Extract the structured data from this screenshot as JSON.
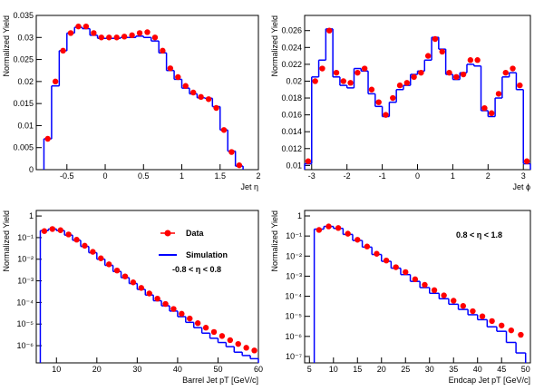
{
  "chart_data": [
    {
      "type": "histogram",
      "xlabel": "Jet η",
      "ylabel": "Normalized Yield",
      "xlim": [
        -0.9,
        2.0
      ],
      "xticks": [
        -0.5,
        0,
        0.5,
        1,
        1.5,
        2
      ],
      "ylim": [
        0,
        0.035
      ],
      "yticks": [
        0,
        0.005,
        0.01,
        0.015,
        0.02,
        0.025,
        0.03,
        0.035
      ],
      "log_y": false,
      "bins": [
        -0.8,
        -0.7,
        -0.6,
        -0.5,
        -0.4,
        -0.3,
        -0.2,
        -0.1,
        0,
        0.1,
        0.2,
        0.3,
        0.4,
        0.5,
        0.6,
        0.7,
        0.8,
        0.9,
        1,
        1.1,
        1.2,
        1.3,
        1.4,
        1.5,
        1.6,
        1.7,
        1.8
      ],
      "series": [
        {
          "name": "Data",
          "style": "markers",
          "color": "#ff0000",
          "values": [
            0.007,
            0.02,
            0.027,
            0.031,
            0.0325,
            0.0325,
            0.031,
            0.03,
            0.03,
            0.03,
            0.0302,
            0.0305,
            0.031,
            0.0312,
            0.03,
            0.027,
            0.023,
            0.021,
            0.019,
            0.0175,
            0.0165,
            0.016,
            0.014,
            0.009,
            0.004,
            0.001
          ]
        },
        {
          "name": "Simulation",
          "style": "step",
          "color": "#0000ff",
          "values": [
            0.007,
            0.019,
            0.027,
            0.031,
            0.0323,
            0.032,
            0.0305,
            0.0298,
            0.0298,
            0.0298,
            0.03,
            0.03,
            0.0303,
            0.03,
            0.0292,
            0.0265,
            0.0225,
            0.0205,
            0.0185,
            0.0172,
            0.0163,
            0.0162,
            0.0143,
            0.009,
            0.0042,
            0.0008
          ]
        }
      ]
    },
    {
      "type": "histogram",
      "xlabel": "Jet ϕ",
      "ylabel": "Normalized Yield",
      "xlim": [
        -3.2,
        3.2
      ],
      "xticks": [
        -3,
        -2,
        -1,
        0,
        1,
        2,
        3
      ],
      "ylim": [
        0.0095,
        0.0278
      ],
      "yticks": [
        0.01,
        0.012,
        0.014,
        0.016,
        0.018,
        0.02,
        0.022,
        0.024,
        0.026
      ],
      "log_y": false,
      "bins": [
        -3.2,
        -3,
        -2.8,
        -2.6,
        -2.4,
        -2.2,
        -2,
        -1.8,
        -1.6,
        -1.4,
        -1.2,
        -1,
        -0.8,
        -0.6,
        -0.4,
        -0.2,
        0,
        0.2,
        0.4,
        0.6,
        0.8,
        1,
        1.2,
        1.4,
        1.6,
        1.8,
        2,
        2.2,
        2.4,
        2.6,
        2.8,
        3,
        3.2
      ],
      "series": [
        {
          "name": "Data",
          "style": "markers",
          "color": "#ff0000",
          "values": [
            0.0105,
            0.02,
            0.0215,
            0.026,
            0.021,
            0.02,
            0.0198,
            0.021,
            0.0215,
            0.019,
            0.0175,
            0.016,
            0.018,
            0.0195,
            0.0198,
            0.0205,
            0.021,
            0.023,
            0.025,
            0.0235,
            0.021,
            0.0205,
            0.0208,
            0.0225,
            0.0225,
            0.0168,
            0.0162,
            0.0185,
            0.021,
            0.0215,
            0.0195,
            0.0105
          ]
        },
        {
          "name": "Simulation",
          "style": "step",
          "color": "#0000ff",
          "values": [
            0.0102,
            0.0205,
            0.0225,
            0.0262,
            0.0205,
            0.0195,
            0.0192,
            0.0215,
            0.0212,
            0.0185,
            0.017,
            0.0158,
            0.0175,
            0.019,
            0.0195,
            0.0208,
            0.0212,
            0.0225,
            0.0252,
            0.0238,
            0.0208,
            0.0202,
            0.021,
            0.022,
            0.0218,
            0.0165,
            0.0158,
            0.018,
            0.0205,
            0.021,
            0.019,
            0.0102
          ]
        }
      ]
    },
    {
      "type": "histogram",
      "xlabel": "Barrel Jet pT [GeV/c]",
      "ylabel": "Normalized Yield",
      "xlim": [
        5,
        60
      ],
      "xticks": [
        10,
        20,
        30,
        40,
        50,
        60
      ],
      "ylim": [
        1.6e-07,
        1.8
      ],
      "log_y": true,
      "yticks": [
        {
          "value": 1e-06,
          "label": "10⁻⁶"
        },
        {
          "value": 1e-05,
          "label": "10⁻⁵"
        },
        {
          "value": 0.0001,
          "label": "10⁻⁴"
        },
        {
          "value": 0.001,
          "label": "10⁻³"
        },
        {
          "value": 0.01,
          "label": "10⁻²"
        },
        {
          "value": 0.1,
          "label": "10⁻¹"
        },
        1
      ],
      "legend": true,
      "annotation": "-0.8 < η < 0.8",
      "bins": [
        6,
        8,
        10,
        12,
        14,
        16,
        18,
        20,
        22,
        24,
        26,
        28,
        30,
        32,
        34,
        36,
        38,
        40,
        42,
        44,
        46,
        48,
        50,
        52,
        54,
        56,
        58,
        60
      ],
      "series": [
        {
          "name": "Data",
          "style": "markers",
          "color": "#ff0000",
          "values": [
            0.2,
            0.25,
            0.22,
            0.14,
            0.08,
            0.042,
            0.022,
            0.011,
            0.0058,
            0.003,
            0.0016,
            0.00085,
            0.00047,
            0.00026,
            0.00015,
            8.5e-05,
            5e-05,
            3e-05,
            1.8e-05,
            1.1e-05,
            6.8e-06,
            4.3e-06,
            2.8e-06,
            1.8e-06,
            1.2e-06,
            8e-07,
            6e-07
          ]
        },
        {
          "name": "Simulation",
          "style": "step",
          "color": "#0000ff",
          "values": [
            0.21,
            0.25,
            0.21,
            0.13,
            0.075,
            0.039,
            0.02,
            0.01,
            0.0052,
            0.0027,
            0.0014,
            0.00075,
            0.0004,
            0.00022,
            0.00012,
            7e-05,
            4e-05,
            2.2e-05,
            1.2e-05,
            6.8e-06,
            3.8e-06,
            2.2e-06,
            1.4e-06,
            9e-07,
            5e-07,
            3.5e-07,
            2.5e-07
          ]
        }
      ]
    },
    {
      "type": "histogram",
      "xlabel": "Endcap Jet pT [GeV/c]",
      "ylabel": "Normalized Yield",
      "xlim": [
        4,
        51
      ],
      "xticks": [
        5,
        10,
        15,
        20,
        25,
        30,
        35,
        40,
        45,
        50
      ],
      "ylim": [
        4.8e-08,
        1.87
      ],
      "log_y": true,
      "yticks": [
        {
          "value": 1e-07,
          "label": "10⁻⁷"
        },
        {
          "value": 1e-06,
          "label": "10⁻⁶"
        },
        {
          "value": 1e-05,
          "label": "10⁻⁵"
        },
        {
          "value": 0.0001,
          "label": "10⁻⁴"
        },
        {
          "value": 0.001,
          "label": "10⁻³"
        },
        {
          "value": 0.01,
          "label": "10⁻²"
        },
        {
          "value": 0.1,
          "label": "10⁻¹"
        },
        1
      ],
      "annotation": "0.8 < η < 1.8",
      "bins": [
        6,
        8,
        10,
        12,
        14,
        16,
        18,
        20,
        22,
        24,
        26,
        28,
        30,
        32,
        34,
        36,
        38,
        40,
        42,
        44,
        46,
        48,
        50
      ],
      "series": [
        {
          "name": "Data",
          "style": "markers",
          "color": "#ff0000",
          "values": [
            0.2,
            0.3,
            0.25,
            0.13,
            0.065,
            0.03,
            0.013,
            0.006,
            0.0028,
            0.0016,
            0.0007,
            0.00037,
            0.0002,
            0.00011,
            6e-05,
            3.3e-05,
            1.8e-05,
            1e-05,
            5.8e-06,
            3.5e-06,
            2e-06,
            1.2e-06
          ]
        },
        {
          "name": "Simulation",
          "style": "step",
          "color": "#0000ff",
          "values": [
            0.22,
            0.3,
            0.24,
            0.12,
            0.06,
            0.028,
            0.012,
            0.0055,
            0.0025,
            0.0012,
            0.00055,
            0.00027,
            0.00014,
            7.5e-05,
            4e-05,
            2.2e-05,
            1.2e-05,
            6.8e-06,
            3e-06,
            1.8e-06,
            5e-07,
            1.5e-07
          ]
        }
      ]
    }
  ]
}
